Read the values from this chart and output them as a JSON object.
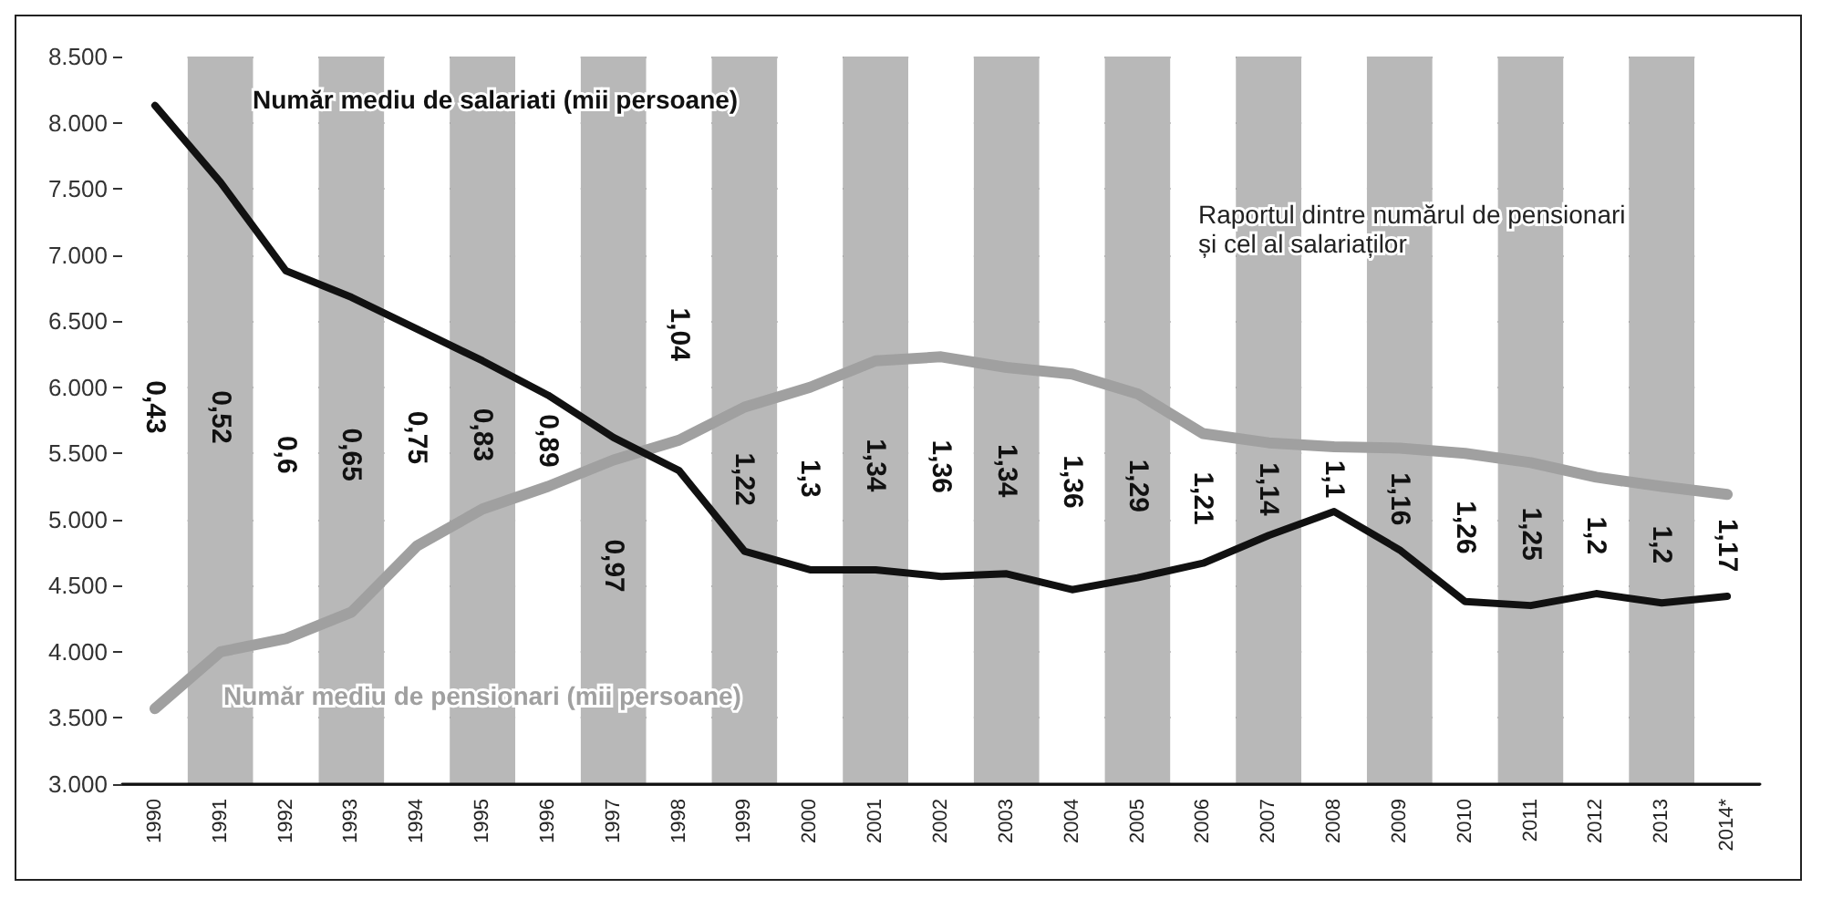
{
  "chart_data": {
    "type": "line",
    "categories": [
      "1990",
      "1991",
      "1992",
      "1993",
      "1994",
      "1995",
      "1996",
      "1997",
      "1998",
      "1999",
      "2000",
      "2001",
      "2002",
      "2003",
      "2004",
      "2005",
      "2006",
      "2007",
      "2008",
      "2009",
      "2010",
      "2011",
      "2012",
      "2013",
      "2014*"
    ],
    "series": [
      {
        "name": "Număr mediu de salariati (mii persoane)",
        "color": "#111111",
        "values": [
          8130,
          7550,
          6880,
          6680,
          6440,
          6200,
          5940,
          5620,
          5370,
          4760,
          4620,
          4620,
          4570,
          4590,
          4470,
          4560,
          4670,
          4880,
          5060,
          4770,
          4380,
          4350,
          4440,
          4370,
          4420
        ]
      },
      {
        "name": "Număr mediu de pensionari (mii persoane)",
        "color": "#a0a0a0",
        "values": [
          3570,
          4000,
          4100,
          4300,
          4800,
          5080,
          5250,
          5450,
          5600,
          5850,
          6000,
          6200,
          6230,
          6150,
          6100,
          5950,
          5650,
          5580,
          5550,
          5540,
          5500,
          5430,
          5320,
          5250,
          5190
        ]
      }
    ],
    "ylim": [
      3000,
      8500
    ],
    "yticks": [
      {
        "value": 3000,
        "label": "3.000"
      },
      {
        "value": 3500,
        "label": "3.500"
      },
      {
        "value": 4000,
        "label": "4.000"
      },
      {
        "value": 4500,
        "label": "4.500"
      },
      {
        "value": 5000,
        "label": "5.000"
      },
      {
        "value": 5500,
        "label": "5.500"
      },
      {
        "value": 6000,
        "label": "6.000"
      },
      {
        "value": 6500,
        "label": "6.500"
      },
      {
        "value": 7000,
        "label": "7.000"
      },
      {
        "value": 7500,
        "label": "7.500"
      },
      {
        "value": 8000,
        "label": "8.000"
      },
      {
        "value": 8500,
        "label": "8.500"
      }
    ],
    "grid": "y",
    "legend": false,
    "marker": "none",
    "line_style": "solid",
    "annotations": [
      "Raportul dintre numărul de pensionari și cel al salariaților",
      "0,43",
      "0,52",
      "0,6",
      "0,65",
      "0,75",
      "0,83",
      "0,89",
      "0,97",
      "1,04",
      "1,22",
      "1,3",
      "1,34",
      "1,36",
      "1,34",
      "1,36",
      "1,29",
      "1,21",
      "1,14",
      "1,1",
      "1,16",
      "1,26",
      "1,25",
      "1,2",
      "1,2",
      "1,17"
    ]
  }
}
